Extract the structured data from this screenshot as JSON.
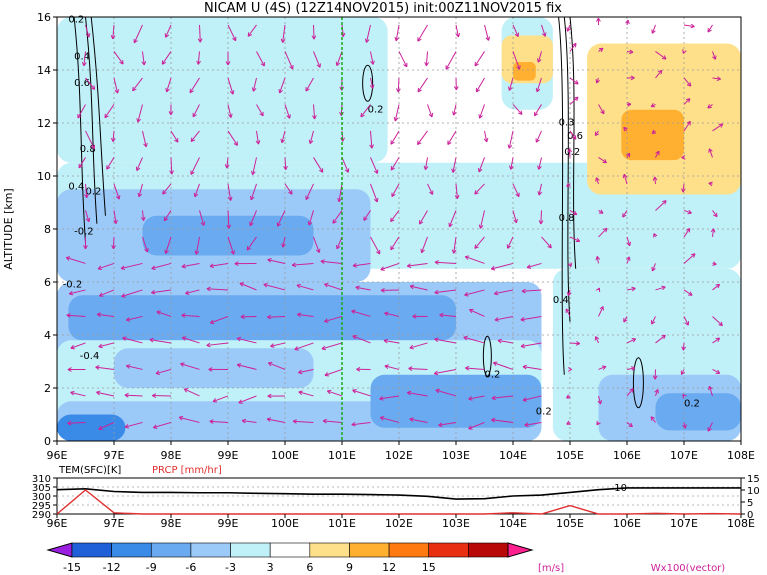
{
  "chart_data": [
    {
      "type": "heatmap",
      "title": "NICAM U (4S) (12Z14NOV2015) init:00Z11NOV2015 fix",
      "ylabel": "ALTITUDE [km]",
      "xlim": [
        96,
        108
      ],
      "ylim": [
        0,
        16
      ],
      "x_ticks": [
        "96E",
        "97E",
        "98E",
        "99E",
        "100E",
        "101E",
        "102E",
        "103E",
        "104E",
        "105E",
        "106E",
        "107E",
        "108E"
      ],
      "y_ticks": [
        "0",
        "2",
        "4",
        "6",
        "8",
        "10",
        "12",
        "14",
        "16"
      ],
      "grid": true,
      "marker_line_lon": 101,
      "contour_labels": [
        "0.2",
        "0.4",
        "0.6",
        "0.8",
        "0.4",
        "0.2",
        "-0.2",
        "-0.2",
        "-0.4",
        "0.2",
        "0.8",
        "0.4",
        "0.2",
        "0.2",
        "0.3",
        "0.2",
        "0.2",
        "0.6"
      ],
      "vector_label": "Wx100(vector)"
    },
    {
      "type": "line",
      "left_label": "TEM(SFC)[K]",
      "right_label": "PRCP [mm/hr]",
      "left_ticks": [
        "310",
        "305",
        "300",
        "295",
        "290"
      ],
      "right_ticks": [
        "15",
        "10",
        "5",
        "0"
      ],
      "annotation": "10",
      "x": [
        96,
        96.5,
        97,
        97.5,
        98,
        98.5,
        99,
        99.5,
        100,
        100.5,
        101,
        101.5,
        102,
        102.5,
        103,
        103.5,
        104,
        104.5,
        105,
        105.5,
        106,
        106.5,
        107,
        107.5,
        108
      ],
      "series": [
        {
          "name": "TEM(SFC)",
          "color": "#000000",
          "values": [
            303.5,
            304.0,
            302.5,
            302.0,
            302.0,
            301.8,
            301.8,
            301.5,
            301.3,
            301.0,
            301.0,
            300.8,
            300.5,
            299.8,
            298.3,
            298.5,
            300.0,
            300.5,
            302.0,
            303.5,
            304.5,
            304.5,
            304.5,
            304.5,
            304.5
          ]
        },
        {
          "name": "PRCP",
          "color": "#e03030",
          "values": [
            0,
            10,
            0.5,
            0,
            0,
            0,
            0,
            0,
            0,
            0,
            0,
            0,
            0,
            0,
            0,
            0,
            0.5,
            0,
            3.5,
            0,
            0,
            0.3,
            0,
            0.2,
            0
          ]
        }
      ]
    },
    {
      "type": "colorbar",
      "levels": [
        "-15",
        "-12",
        "-9",
        "-6",
        "-3",
        "3",
        "6",
        "9",
        "12",
        "15"
      ],
      "unit": "[m/s]",
      "colors": [
        "#9a1fe0",
        "#1f5fd8",
        "#3a8ae8",
        "#6aaaf0",
        "#9ccaf8",
        "#c0f0f8",
        "#ffffff",
        "#ffe08a",
        "#ffb030",
        "#ff7a10",
        "#e83010",
        "#b80808",
        "#ff2090"
      ]
    }
  ]
}
